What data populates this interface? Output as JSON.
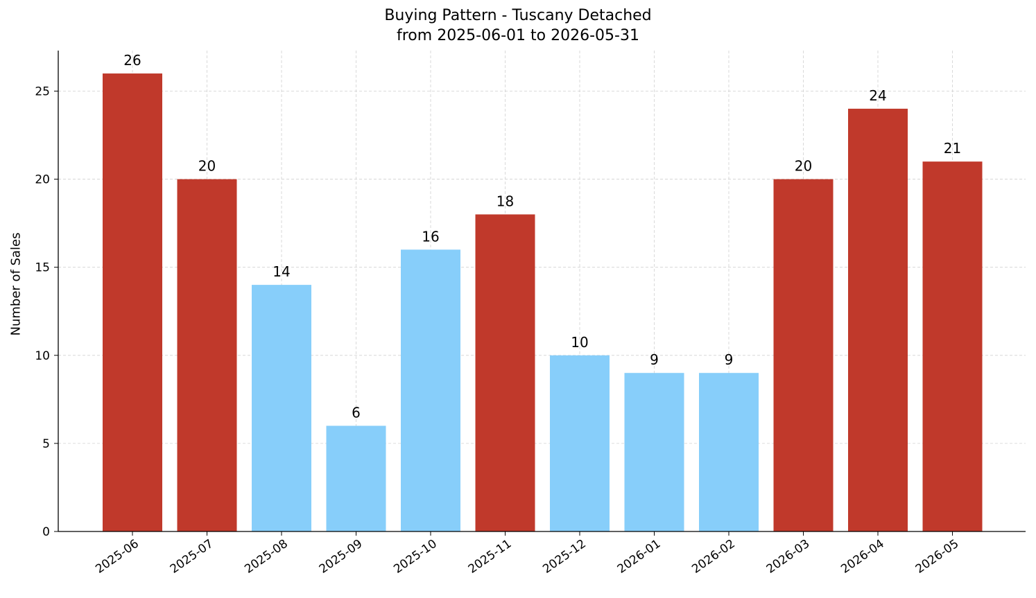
{
  "chart_data": {
    "type": "bar",
    "title": "Buying Pattern - Tuscany Detached",
    "subtitle": "from 2025-06-01 to 2026-05-31",
    "xlabel": "",
    "ylabel": "Number of Sales",
    "categories": [
      "2025-06",
      "2025-07",
      "2025-08",
      "2025-09",
      "2025-10",
      "2025-11",
      "2025-12",
      "2026-01",
      "2026-02",
      "2026-03",
      "2026-04",
      "2026-05"
    ],
    "values": [
      26,
      20,
      14,
      6,
      16,
      18,
      10,
      9,
      9,
      20,
      24,
      21
    ],
    "bar_colors": [
      "#c0392b",
      "#c0392b",
      "#87cefa",
      "#87cefa",
      "#87cefa",
      "#c0392b",
      "#87cefa",
      "#87cefa",
      "#87cefa",
      "#c0392b",
      "#c0392b",
      "#c0392b"
    ],
    "ylim": [
      0,
      27.3
    ],
    "yticks": [
      0,
      5,
      10,
      15,
      20,
      25
    ],
    "grid": true,
    "data_labels": true
  }
}
